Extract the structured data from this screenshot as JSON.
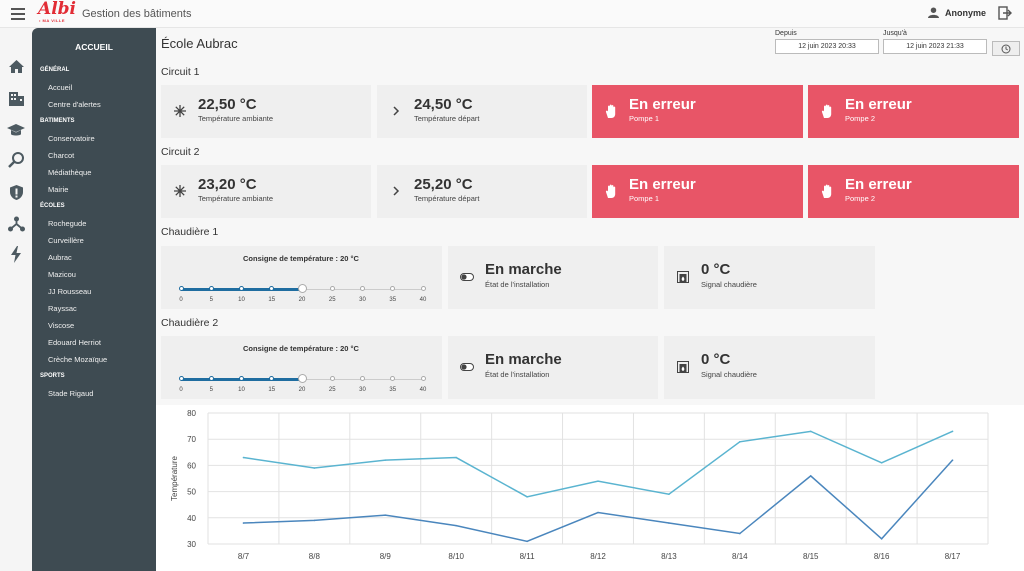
{
  "app": {
    "logo_text": "Albi",
    "logo_sub": "• MA VILLE",
    "title": "Gestion des bâtiments",
    "user": "Anonyme"
  },
  "icons": {
    "menu": "menu-icon",
    "rail": [
      "home-icon",
      "buildings-icon",
      "school-icon",
      "search-person-icon",
      "shield-icon",
      "network-icon",
      "lightning-icon"
    ]
  },
  "sidebar": {
    "header": "ACCUEIL",
    "sections": [
      {
        "title": "GÉNÉRAL",
        "items": [
          "Accueil",
          "Centre d'alertes"
        ]
      },
      {
        "title": "BATIMENTS",
        "items": [
          "Conservatoire",
          "Charcot",
          "Médiathèque",
          "Mairie"
        ]
      },
      {
        "title": "ÉCOLES",
        "items": [
          "Rochegude",
          "Curveillère",
          "Aubrac",
          "Mazicou",
          "JJ Rousseau",
          "Rayssac",
          "Viscose",
          "Edouard Herriot",
          "Crèche Mozaïque"
        ]
      },
      {
        "title": "SPORTS",
        "items": [
          "Stade Rigaud"
        ]
      }
    ]
  },
  "page": {
    "title": "École Aubrac",
    "from_label": "Depuis",
    "from_value": "12 juin 2023 20:33",
    "to_label": "Jusqu'à",
    "to_value": "12 juin 2023 21:33"
  },
  "circuit1": {
    "title": "Circuit 1",
    "ambient_value": "22,50 °C",
    "ambient_label": "Température ambiante",
    "depart_value": "24,50 °C",
    "depart_label": "Température départ",
    "pump1_value": "En erreur",
    "pump1_label": "Pompe 1",
    "pump2_value": "En erreur",
    "pump2_label": "Pompe 2"
  },
  "circuit2": {
    "title": "Circuit 2",
    "ambient_value": "23,20 °C",
    "ambient_label": "Température ambiante",
    "depart_value": "25,20 °C",
    "depart_label": "Température départ",
    "pump1_value": "En erreur",
    "pump1_label": "Pompe 1",
    "pump2_value": "En erreur",
    "pump2_label": "Pompe 2"
  },
  "boiler1": {
    "title": "Chaudière 1",
    "setpoint_label": "Consigne de température : 20 °C",
    "setpoint": 20,
    "scale": [
      "0",
      "5",
      "10",
      "15",
      "20",
      "25",
      "30",
      "35",
      "40"
    ],
    "state_value": "En marche",
    "state_label": "État de l'installation",
    "signal_value": "0 °C",
    "signal_label": "Signal chaudière"
  },
  "boiler2": {
    "title": "Chaudière 2",
    "setpoint_label": "Consigne de température : 20 °C",
    "setpoint": 20,
    "scale": [
      "0",
      "5",
      "10",
      "15",
      "20",
      "25",
      "30",
      "35",
      "40"
    ],
    "state_value": "En marche",
    "state_label": "État de l'installation",
    "signal_value": "0 °C",
    "signal_label": "Signal chaudière"
  },
  "colors": {
    "error": "#e85567",
    "sidebar": "#3e4b52",
    "series_upper": "#5ab4d0",
    "series_lower": "#4a86bd",
    "slider": "#1f6da0"
  },
  "chart_data": {
    "type": "line",
    "categories": [
      "8/7",
      "8/8",
      "8/9",
      "8/10",
      "8/11",
      "8/12",
      "8/13",
      "8/14",
      "8/15",
      "8/16",
      "8/17"
    ],
    "ylabel": "Température",
    "ylim": [
      30,
      80
    ],
    "yticks": [
      "30",
      "40",
      "50",
      "60",
      "70",
      "80"
    ],
    "grid": true,
    "series": [
      {
        "values": [
          63,
          59,
          62,
          63,
          48,
          54,
          49,
          69,
          73,
          61,
          73
        ]
      },
      {
        "values": [
          38,
          39,
          41,
          37,
          31,
          42,
          38,
          34,
          56,
          32,
          62
        ]
      }
    ]
  }
}
